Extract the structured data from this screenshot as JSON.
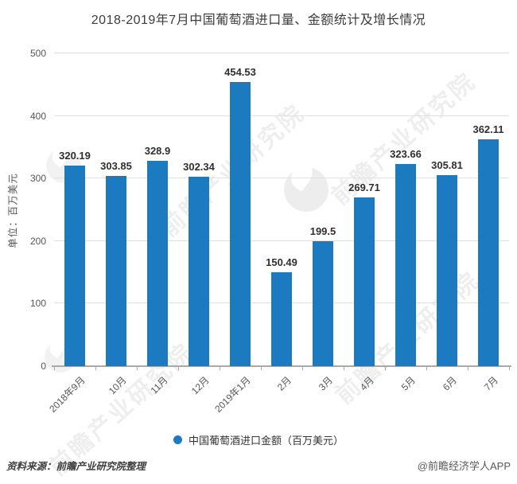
{
  "title": "2018-2019年7月中国葡萄酒进口量、金额统计及增长情况",
  "y_axis": {
    "title": "单位：百万美元"
  },
  "legend": {
    "label": "中国葡萄酒进口金额（百万美元）",
    "marker_color": "#1b7ac0"
  },
  "footer": {
    "source": "资料来源：前瞻产业研究院整理",
    "credit": "@前瞻经济学人APP"
  },
  "watermark": {
    "text": "前瞻产业研究院"
  },
  "chart_data": {
    "type": "bar",
    "title": "2018-2019年7月中国葡萄酒进口量、金额统计及增长情况",
    "categories": [
      "2018年9月",
      "10月",
      "11月",
      "12月",
      "2019年1月",
      "2月",
      "3月",
      "4月",
      "5月",
      "6月",
      "7月"
    ],
    "values": [
      320.19,
      303.85,
      328.9,
      302.34,
      454.53,
      150.49,
      199.5,
      269.71,
      323.66,
      305.81,
      362.11
    ],
    "series_name": "中国葡萄酒进口金额（百万美元）",
    "xlabel": "",
    "ylabel": "单位：百万美元",
    "ylim": [
      0,
      500
    ],
    "yticks": [
      0,
      100,
      200,
      300,
      400,
      500
    ],
    "grid": true,
    "bar_color": "#1b7ac0",
    "legend_position": "bottom",
    "x_label_rotation": -45
  }
}
